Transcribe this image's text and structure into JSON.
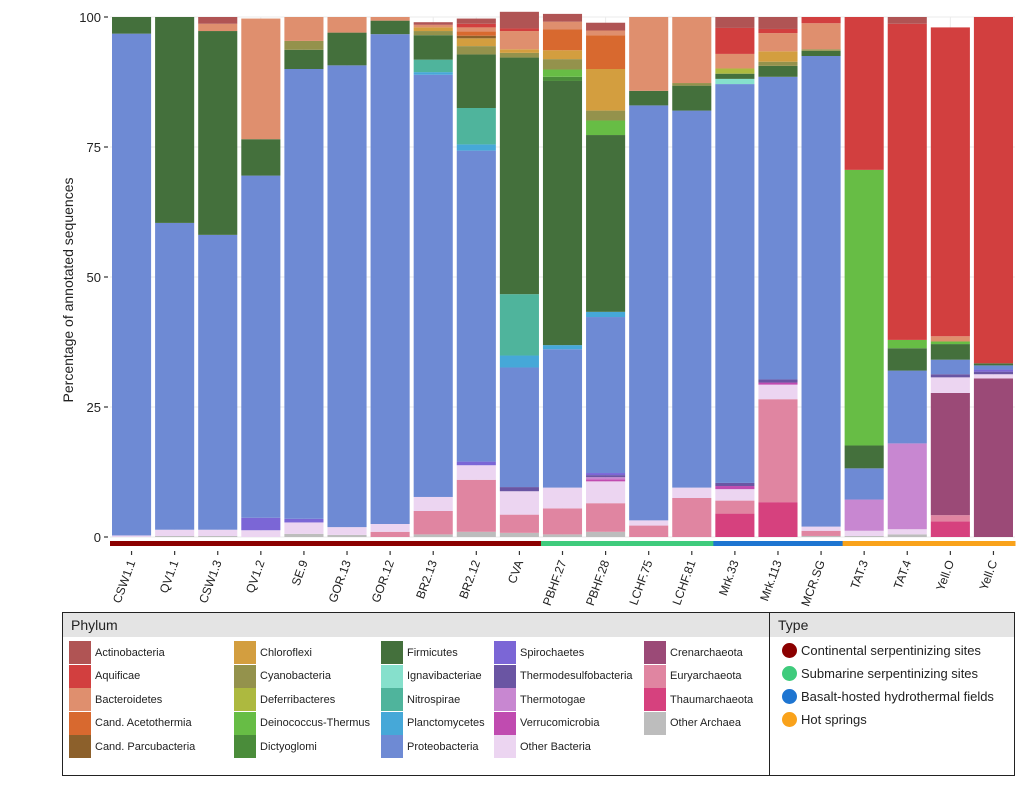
{
  "chart_data": {
    "type": "bar",
    "stacked": true,
    "ylabel": "Percentage of annotated sequences",
    "xlabel": "",
    "ylim": [
      0,
      100
    ],
    "yticks": [
      0,
      25,
      50,
      75,
      100
    ],
    "grid": true,
    "categories": [
      "CSW1.1",
      "QV1.1",
      "CSW1.3",
      "QV1.2",
      "SE.9",
      "GOR.13",
      "GOR.12",
      "BR2.13",
      "BR2.12",
      "CVA",
      "PBHF.27",
      "PBHF.28",
      "LCHF.75",
      "LCHF.81",
      "Mrk.33",
      "Mrk.113",
      "MCR.SG",
      "TAT.3",
      "TAT.4",
      "Yell.O",
      "Yell.C"
    ],
    "sample_types": [
      "Continental serpentinizing sites",
      "Continental serpentinizing sites",
      "Continental serpentinizing sites",
      "Continental serpentinizing sites",
      "Continental serpentinizing sites",
      "Continental serpentinizing sites",
      "Continental serpentinizing sites",
      "Continental serpentinizing sites",
      "Continental serpentinizing sites",
      "Continental serpentinizing sites",
      "Submarine serpentinizing sites",
      "Submarine serpentinizing sites",
      "Submarine serpentinizing sites",
      "Submarine serpentinizing sites",
      "Basalt-hosted hydrothermal fields",
      "Basalt-hosted hydrothermal fields",
      "Basalt-hosted hydrothermal fields",
      "Hot springs",
      "Hot springs",
      "Hot springs",
      "Hot springs"
    ],
    "phyla": [
      {
        "name": "Other Archaea",
        "color": "#bdbdbd"
      },
      {
        "name": "Thaumarchaeota",
        "color": "#d6417e"
      },
      {
        "name": "Euryarchaeota",
        "color": "#e085a1"
      },
      {
        "name": "Crenarchaeota",
        "color": "#9b4a77"
      },
      {
        "name": "Other Bacteria",
        "color": "#ecd5f1"
      },
      {
        "name": "Verrucomicrobia",
        "color": "#c04bb0"
      },
      {
        "name": "Thermotogae",
        "color": "#c887d1"
      },
      {
        "name": "Thermodesulfobacteria",
        "color": "#6a55a3"
      },
      {
        "name": "Spirochaetes",
        "color": "#7b66d6"
      },
      {
        "name": "Proteobacteria",
        "color": "#6e8ad4"
      },
      {
        "name": "Planctomycetes",
        "color": "#46a8d8"
      },
      {
        "name": "Nitrospirae",
        "color": "#4fb49c"
      },
      {
        "name": "Ignavibacteriae",
        "color": "#86e0cc"
      },
      {
        "name": "Firmicutes",
        "color": "#44703c"
      },
      {
        "name": "Dictyoglomi",
        "color": "#4a8c3a"
      },
      {
        "name": "Deinococcus-Thermus",
        "color": "#67bd45"
      },
      {
        "name": "Deferribacteres",
        "color": "#adb93f"
      },
      {
        "name": "Cyanobacteria",
        "color": "#94924c"
      },
      {
        "name": "Chloroflexi",
        "color": "#d39e3f"
      },
      {
        "name": "Cand. Parcubacteria",
        "color": "#8c602b"
      },
      {
        "name": "Cand. Acetothermia",
        "color": "#d8692f"
      },
      {
        "name": "Bacteroidetes",
        "color": "#df8f6e"
      },
      {
        "name": "Aquificae",
        "color": "#d23f3f"
      },
      {
        "name": "Actinobacteria",
        "color": "#b05454"
      }
    ],
    "series": [
      {
        "name": "Other Archaea",
        "values": [
          0,
          0.2,
          0.2,
          0,
          0.6,
          0.4,
          0,
          0.5,
          1,
          0.8,
          0.5,
          1,
          0,
          0,
          0,
          0,
          0.2,
          0.2,
          0.5,
          0,
          0
        ]
      },
      {
        "name": "Thaumarchaeota",
        "values": [
          0,
          0,
          0,
          0,
          0,
          0,
          0,
          0,
          0,
          0,
          0,
          0,
          0,
          0,
          4.5,
          6.7,
          0,
          0,
          0,
          3,
          0
        ]
      },
      {
        "name": "Euryarchaeota",
        "values": [
          0,
          0,
          0,
          0,
          0,
          0,
          1,
          4.5,
          10,
          3.5,
          5,
          5.5,
          2.2,
          7.5,
          2.5,
          19.8,
          1,
          0,
          0,
          1.2,
          0
        ]
      },
      {
        "name": "Crenarchaeota",
        "values": [
          0,
          0,
          0,
          0,
          0,
          0,
          0,
          0,
          0,
          0,
          0,
          0,
          0,
          0,
          0,
          0,
          0,
          0,
          0,
          23.5,
          30.5
        ]
      },
      {
        "name": "Other Bacteria",
        "values": [
          0.3,
          1.2,
          1.2,
          1.3,
          2.2,
          1.5,
          1.5,
          2.7,
          2.8,
          4.5,
          4,
          4.2,
          1,
          2,
          2.2,
          2.8,
          0.8,
          1,
          1,
          3,
          0.8
        ]
      },
      {
        "name": "Verrucomicrobia",
        "values": [
          0,
          0,
          0,
          0,
          0,
          0,
          0,
          0,
          0,
          0,
          0,
          0.4,
          0,
          0,
          0.6,
          0.4,
          0,
          0,
          0,
          0,
          0
        ]
      },
      {
        "name": "Thermotogae",
        "values": [
          0,
          0,
          0,
          0,
          0,
          0,
          0,
          0,
          0,
          0,
          0,
          0.4,
          0,
          0,
          0,
          0,
          0,
          6,
          16.5,
          0,
          0
        ]
      },
      {
        "name": "Thermodesulfobacteria",
        "values": [
          0,
          0,
          0,
          0,
          0,
          0,
          0,
          0,
          0,
          0.8,
          0,
          0.4,
          0,
          0,
          0.6,
          0.6,
          0,
          0,
          0,
          0.6,
          0.5
        ]
      },
      {
        "name": "Spirochaetes",
        "values": [
          0,
          0,
          0,
          2.4,
          0.7,
          0,
          0,
          0,
          0.7,
          0,
          0,
          0.4,
          0,
          0,
          0,
          0,
          0,
          0,
          0,
          0,
          0.4
        ]
      },
      {
        "name": "Proteobacteria",
        "values": [
          96.5,
          59,
          56.7,
          65.8,
          86.5,
          88.8,
          94.2,
          81.2,
          59.8,
          23,
          26.6,
          30,
          79.8,
          72.5,
          76.7,
          58.2,
          90.5,
          6,
          14,
          2.8,
          0.8
        ]
      },
      {
        "name": "Planctomycetes",
        "values": [
          0,
          0,
          0,
          0,
          0,
          0,
          0,
          0.5,
          1.2,
          2.3,
          0.8,
          1,
          0,
          0,
          0,
          0,
          0,
          0,
          0,
          0,
          0
        ]
      },
      {
        "name": "Nitrospirae",
        "values": [
          0,
          0,
          0,
          0,
          0,
          0,
          0,
          2.4,
          7,
          11.8,
          0,
          0,
          0,
          0,
          0,
          0,
          0,
          0,
          0,
          0,
          0
        ]
      },
      {
        "name": "Ignavibacteriae",
        "values": [
          0,
          0,
          0,
          0,
          0,
          0,
          0,
          0,
          0,
          0,
          0,
          0,
          0,
          0,
          1,
          0,
          0,
          0,
          0,
          0,
          0
        ]
      },
      {
        "name": "Firmicutes",
        "values": [
          3.2,
          39.6,
          39.2,
          7,
          3.7,
          6.3,
          2.6,
          4.7,
          10.3,
          45.5,
          50.8,
          34,
          2.8,
          4.8,
          1,
          2.1,
          1,
          4.4,
          4.3,
          3,
          0.4
        ]
      },
      {
        "name": "Dictyoglomi",
        "values": [
          0,
          0,
          0,
          0,
          0,
          0,
          0,
          0,
          0,
          0,
          0.8,
          0,
          0,
          0,
          0,
          0,
          0,
          0,
          0,
          0,
          0
        ]
      },
      {
        "name": "Deinococcus-Thermus",
        "values": [
          0,
          0,
          0,
          0,
          0,
          0,
          0,
          0,
          0,
          0,
          1.4,
          2.8,
          0,
          0,
          0,
          0,
          0,
          53,
          1.6,
          0.5,
          0
        ]
      },
      {
        "name": "Deferribacteres",
        "values": [
          0,
          0,
          0,
          0,
          0,
          0,
          0,
          0,
          0,
          0,
          0,
          0,
          0,
          0,
          1,
          0,
          0,
          0,
          0,
          0,
          0
        ]
      },
      {
        "name": "Cyanobacteria",
        "values": [
          0,
          0,
          0,
          0,
          1.7,
          0,
          0,
          0.8,
          1.6,
          0.9,
          2,
          1.9,
          0,
          0.5,
          0,
          0.8,
          0.3,
          0,
          0,
          0,
          0
        ]
      },
      {
        "name": "Chloroflexi",
        "values": [
          0,
          0,
          0,
          0,
          0,
          0,
          0,
          0.7,
          1.5,
          0.7,
          1.7,
          8,
          0,
          0,
          0,
          2,
          0,
          0,
          0,
          0,
          0
        ]
      },
      {
        "name": "Cand. Parcubacteria",
        "values": [
          0,
          0,
          0,
          0,
          0,
          0,
          0,
          0,
          0.5,
          0,
          0,
          0,
          0,
          0,
          0,
          0,
          0,
          0,
          0,
          0,
          0
        ]
      },
      {
        "name": "Cand. Acetothermia",
        "values": [
          0,
          0,
          0,
          0,
          0,
          0,
          0,
          0,
          0.8,
          0,
          4,
          6.5,
          0,
          0,
          0,
          0,
          0,
          0,
          0,
          0,
          0
        ]
      },
      {
        "name": "Bacteroidetes",
        "values": [
          0,
          0,
          1.4,
          23.2,
          4.6,
          3,
          0.7,
          0.5,
          0.8,
          3.5,
          1.5,
          0.9,
          14.2,
          12.7,
          2.8,
          3.5,
          5,
          0,
          0,
          1,
          0
        ]
      },
      {
        "name": "Aquificae",
        "values": [
          0,
          0,
          0,
          0,
          0,
          0,
          0,
          0,
          0.7,
          0.5,
          0,
          0,
          0,
          0,
          5,
          0.8,
          1.2,
          29.4,
          60.8,
          59.4,
          66.6
        ]
      },
      {
        "name": "Actinobacteria",
        "values": [
          0,
          0,
          1.3,
          0,
          0,
          0,
          0,
          0.5,
          1,
          3.2,
          1.5,
          1.5,
          0,
          0,
          2.1,
          2.3,
          0,
          0,
          1.3,
          0,
          0
        ]
      }
    ],
    "legend_phylum_title": "Phylum",
    "legend_type_title": "Type",
    "types": [
      {
        "name": "Continental serpentinizing sites",
        "color": "#8b0000"
      },
      {
        "name": "Submarine serpentinizing sites",
        "color": "#3fcb7c"
      },
      {
        "name": "Basalt-hosted hydrothermal fields",
        "color": "#1e75d1"
      },
      {
        "name": "Hot springs",
        "color": "#f9a21b"
      }
    ],
    "legend_columns": [
      [
        "Actinobacteria",
        "Aquificae",
        "Bacteroidetes",
        "Cand. Acetothermia",
        "Cand. Parcubacteria"
      ],
      [
        "Chloroflexi",
        "Cyanobacteria",
        "Deferribacteres",
        "Deinococcus-Thermus",
        "Dictyoglomi"
      ],
      [
        "Firmicutes",
        "Ignavibacteriae",
        "Nitrospirae",
        "Planctomycetes",
        "Proteobacteria"
      ],
      [
        "Spirochaetes",
        "Thermodesulfobacteria",
        "Thermotogae",
        "Verrucomicrobia",
        "Other Bacteria"
      ],
      [
        "Crenarchaeota",
        "Euryarchaeota",
        "Thaumarchaeota",
        "Other Archaea"
      ]
    ]
  }
}
